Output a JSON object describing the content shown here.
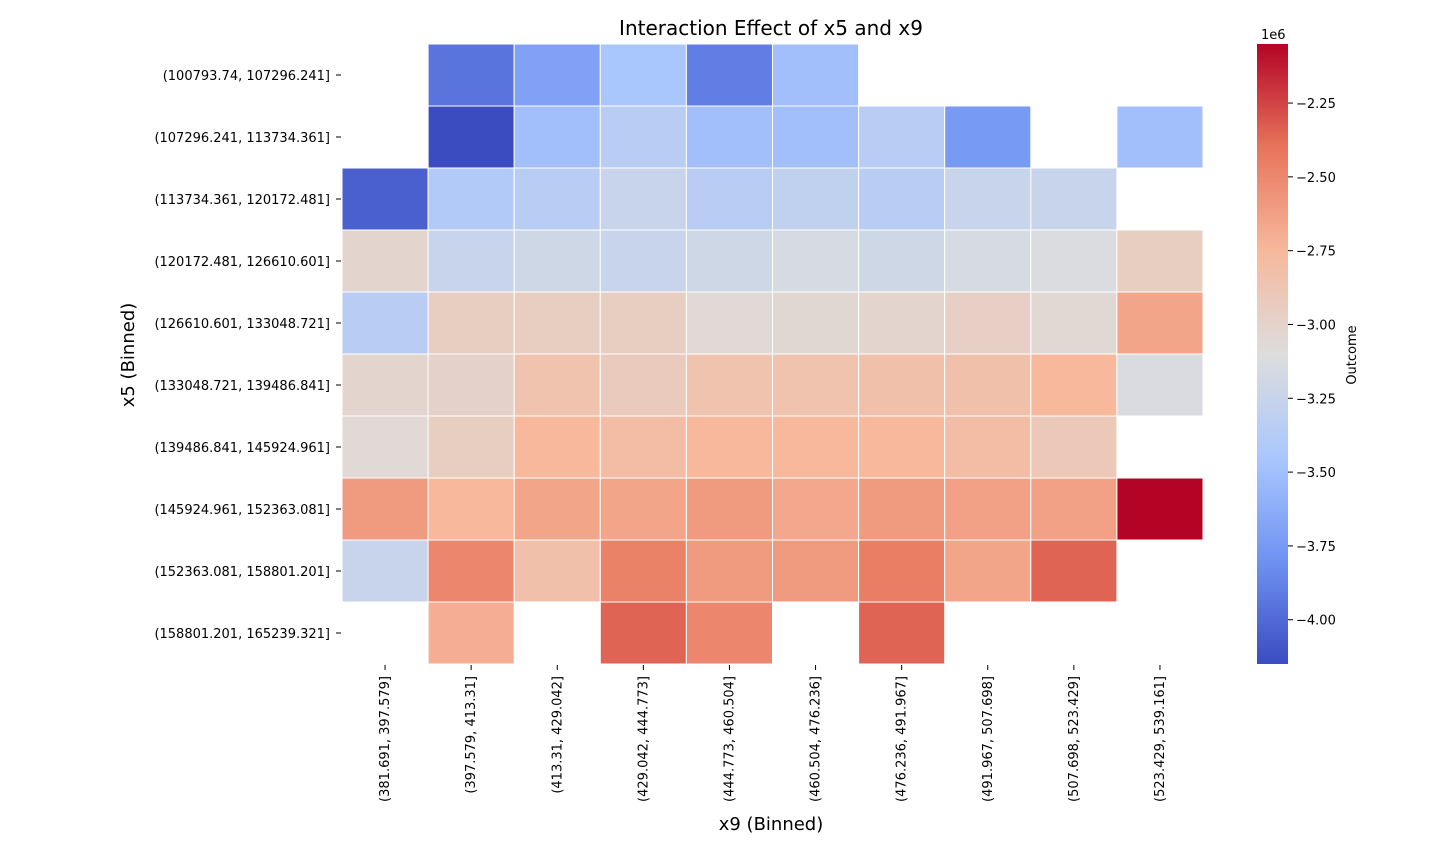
{
  "chart_data": {
    "type": "heatmap",
    "title": "Interaction Effect of x5 and x9",
    "xlabel": "x9 (Binned)",
    "ylabel": "x5 (Binned)",
    "x_categories": [
      "(381.691, 397.579]",
      "(397.579, 413.31]",
      "(413.31, 429.042]",
      "(429.042, 444.773]",
      "(444.773, 460.504]",
      "(460.504, 476.236]",
      "(476.236, 491.967]",
      "(491.967, 507.698]",
      "(507.698, 523.429]",
      "(523.429, 539.161]"
    ],
    "y_categories": [
      "(100793.74, 107296.241]",
      "(107296.241, 113734.361]",
      "(113734.361, 120172.481]",
      "(120172.481, 126610.601]",
      "(126610.601, 133048.721]",
      "(133048.721, 139486.841]",
      "(139486.841, 145924.961]",
      "(145924.961, 152363.081]",
      "(152363.081, 158801.201]",
      "(158801.201, 165239.321]"
    ],
    "values": [
      [
        null,
        -3.95,
        -3.7,
        -3.45,
        -3.9,
        -3.5,
        null,
        null,
        null,
        null
      ],
      [
        null,
        -4.15,
        -3.5,
        -3.35,
        -3.5,
        -3.5,
        -3.35,
        -3.75,
        null,
        -3.5
      ],
      [
        -4.05,
        -3.4,
        -3.35,
        -3.25,
        -3.35,
        -3.3,
        -3.35,
        -3.25,
        -3.25,
        null
      ],
      [
        -3.02,
        -3.25,
        -3.2,
        -3.25,
        -3.2,
        -3.15,
        -3.2,
        -3.15,
        -3.12,
        -2.95
      ],
      [
        -3.35,
        -2.95,
        -2.95,
        -2.95,
        -3.06,
        -3.04,
        -3.02,
        -2.97,
        -3.05,
        -2.65
      ],
      [
        -3.02,
        -3.0,
        -2.85,
        -2.92,
        -2.85,
        -2.85,
        -2.83,
        -2.83,
        -2.75,
        -3.13
      ],
      [
        -3.06,
        -2.95,
        -2.75,
        -2.8,
        -2.75,
        -2.75,
        -2.75,
        -2.8,
        -2.9,
        null
      ],
      [
        -2.6,
        -2.75,
        -2.65,
        -2.65,
        -2.6,
        -2.67,
        -2.6,
        -2.63,
        -2.63,
        -2.05
      ],
      [
        -3.25,
        -2.5,
        -2.83,
        -2.47,
        -2.6,
        -2.6,
        -2.45,
        -2.65,
        -2.35,
        null
      ],
      [
        null,
        -2.7,
        null,
        -2.35,
        -2.5,
        null,
        -2.35,
        null,
        null,
        null
      ]
    ],
    "value_scale": 1000000,
    "colorbar": {
      "label": "Outcome",
      "multiplier_label": "1e6",
      "min": -4.15,
      "max": -2.05,
      "ticks": [
        -2.25,
        -2.5,
        -2.75,
        -3.0,
        -3.25,
        -3.5,
        -3.75,
        -4.0
      ],
      "tick_labels": [
        "−2.25",
        "−2.50",
        "−2.75",
        "−3.00",
        "−3.25",
        "−3.50",
        "−3.75",
        "−4.00"
      ]
    },
    "colormap": "coolwarm",
    "colormap_stops": [
      "#3b4cc0",
      "#6f92f3",
      "#aac7fd",
      "#dddddd",
      "#f7b89c",
      "#e7745b",
      "#b40426"
    ]
  }
}
